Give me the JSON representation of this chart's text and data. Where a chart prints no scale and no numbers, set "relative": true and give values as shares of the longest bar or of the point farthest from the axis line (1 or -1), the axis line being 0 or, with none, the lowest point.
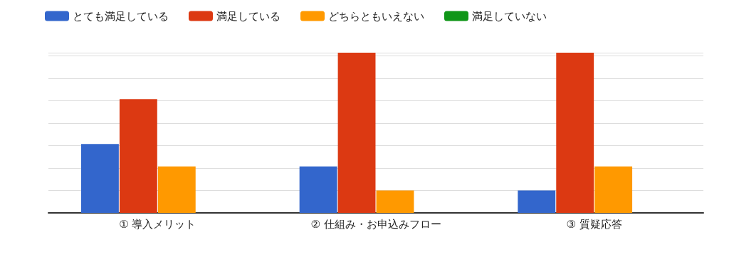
{
  "chart_data": {
    "type": "bar",
    "relative": true,
    "categories": [
      "① 導入メリット",
      "② 仕組み・お申込みフロー",
      "③ 質疑応答"
    ],
    "series": [
      {
        "name": "とても満足している",
        "color": "#3366cc",
        "values": [
          0.43,
          0.29,
          0.14
        ]
      },
      {
        "name": "満足している",
        "color": "#dc3912",
        "values": [
          0.71,
          1,
          1
        ]
      },
      {
        "name": "どちらともいえない",
        "color": "#ff9900",
        "values": [
          0.29,
          0.14,
          0.29
        ]
      },
      {
        "name": "満足していない",
        "color": "#109618",
        "values": [
          0,
          0,
          0
        ]
      }
    ],
    "legend": "top left",
    "grid": "y"
  }
}
